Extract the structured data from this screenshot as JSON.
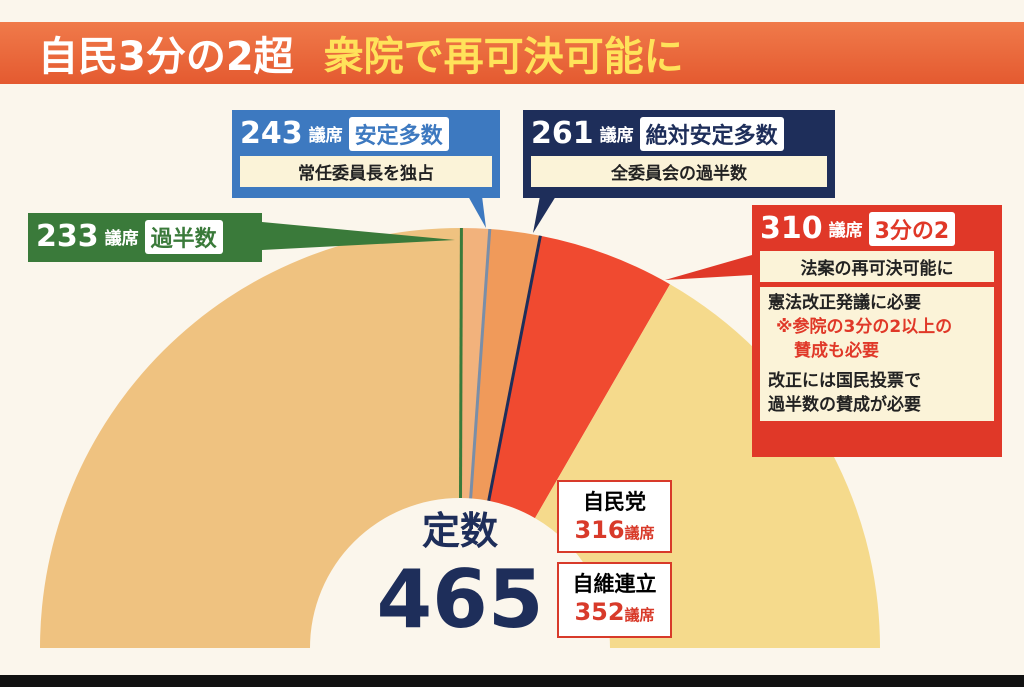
{
  "header": {
    "title_main": "自民3分の2超",
    "title_sub": "衆院で再可決可能に"
  },
  "unit": "議席",
  "total": {
    "label": "定数",
    "value": 465
  },
  "thresholds": [
    {
      "seats": 233,
      "label": "過半数",
      "notes": []
    },
    {
      "seats": 243,
      "label": "安定多数",
      "notes": [
        "常任委員長を独占"
      ]
    },
    {
      "seats": 261,
      "label": "絶対安定多数",
      "notes": [
        "全委員会の過半数"
      ]
    },
    {
      "seats": 310,
      "label": "3分の2",
      "notes": [
        "法案の再可決可能に",
        "憲法改正発議に必要",
        "※参院の3分の2以上の",
        "賛成も必要",
        "改正には国民投票で",
        "過半数の賛成が必要"
      ]
    }
  ],
  "results": [
    {
      "name": "自民党",
      "seats": 316
    },
    {
      "name": "自維連立",
      "seats": 352
    }
  ]
}
